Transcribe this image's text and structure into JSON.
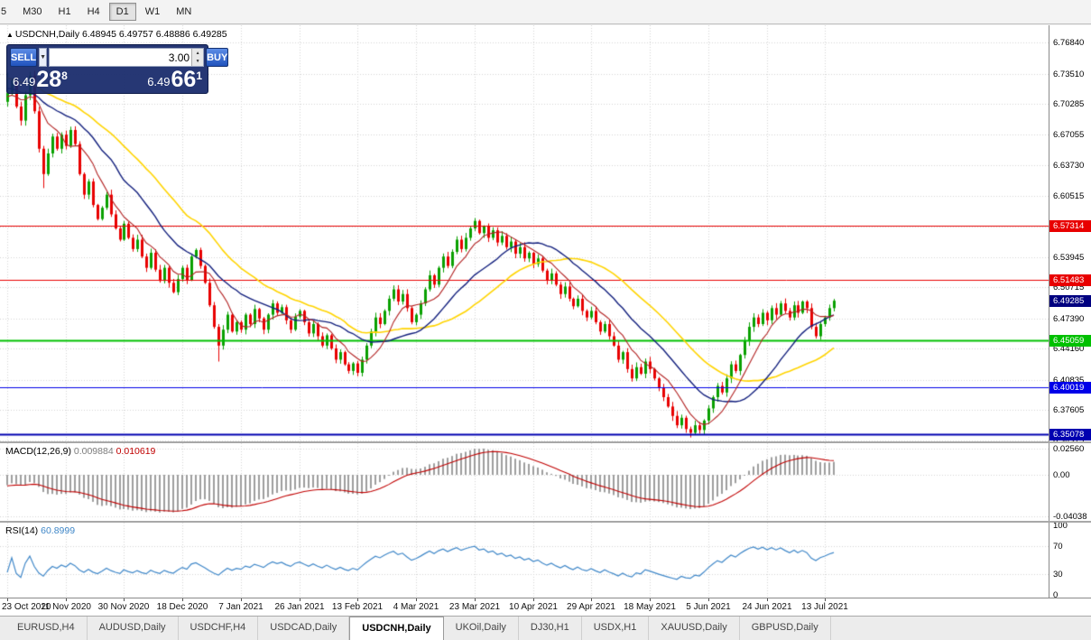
{
  "toolbar": {
    "timeframes": [
      {
        "label": "5",
        "active": false
      },
      {
        "label": "M30",
        "active": false
      },
      {
        "label": "H1",
        "active": false
      },
      {
        "label": "H4",
        "active": false
      },
      {
        "label": "D1",
        "active": true
      },
      {
        "label": "W1",
        "active": false
      },
      {
        "label": "MN",
        "active": false
      }
    ]
  },
  "chart": {
    "symbol_line": {
      "marker": "▲",
      "symbol": "USDCNH,Daily",
      "ohlc": "6.48945 6.49757 6.48886 6.49285"
    },
    "one_click": {
      "sell_label": "SELL",
      "buy_label": "BUY",
      "volume": "3.00",
      "sell": {
        "base": "6.49",
        "pips": "28",
        "pip": "8"
      },
      "buy": {
        "base": "6.49",
        "pips": "66",
        "pip": "1"
      }
    },
    "price_axis": {
      "labels": [
        "6.76840",
        "6.73510",
        "6.70285",
        "6.67055",
        "6.63730",
        "6.60515",
        "6.53945",
        "6.50715",
        "6.47390",
        "6.44160",
        "6.40835",
        "6.37605",
        "6.34375"
      ],
      "grid": [
        6.7684,
        6.7351,
        6.70285,
        6.67055,
        6.6373,
        6.60515,
        6.57185,
        6.53945,
        6.50715,
        6.4739,
        6.4416,
        6.40835,
        6.37605,
        6.34375
      ]
    },
    "levels": [
      {
        "price": 6.57314,
        "label": "6.57314",
        "color": "#e80000",
        "width": 1
      },
      {
        "price": 6.51483,
        "label": "6.51483",
        "color": "#e80000",
        "width": 1
      },
      {
        "price": 6.45059,
        "label": "6.45059",
        "color": "#00c000",
        "width": 2
      },
      {
        "price": 6.40019,
        "label": "6.40019",
        "color": "#0000e8",
        "width": 1
      },
      {
        "price": 6.35078,
        "label": "6.35078",
        "color": "#0000b0",
        "width": 2
      }
    ],
    "current_price_tag": {
      "price": 6.49285,
      "label": "6.49285",
      "color": "#000080"
    }
  },
  "macd": {
    "label": "MACD(12,26,9)",
    "value_main": "0.009884",
    "value_signal": "0.010619",
    "axis": [
      "0.02560",
      "0.00",
      "-0.04038"
    ]
  },
  "rsi": {
    "label": "RSI(14)",
    "value": "60.8999",
    "axis": [
      "100",
      "70",
      "30",
      "0"
    ],
    "levels": [
      70,
      30
    ]
  },
  "tabs": {
    "active_index": 4,
    "items": [
      {
        "label": "EURUSD,H4"
      },
      {
        "label": "AUDUSD,Daily"
      },
      {
        "label": "USDCHF,H4"
      },
      {
        "label": "USDCAD,Daily"
      },
      {
        "label": "USDCNH,Daily"
      },
      {
        "label": "UKOil,Daily"
      },
      {
        "label": "DJ30,H1"
      },
      {
        "label": "USDX,H1"
      },
      {
        "label": "XAUUSD,Daily"
      },
      {
        "label": "GBPUSD,Daily"
      }
    ]
  },
  "chart_data": {
    "type": "candlestick",
    "symbol": "USDCNH",
    "timeframe": "Daily",
    "x_labels": [
      "23 Oct 2020",
      "11 Nov 2020",
      "30 Nov 2020",
      "18 Dec 2020",
      "7 Jan 2021",
      "26 Jan 2021",
      "13 Feb 2021",
      "4 Mar 2021",
      "23 Mar 2021",
      "10 Apr 2021",
      "29 Apr 2021",
      "18 May 2021",
      "5 Jun 2021",
      "24 Jun 2021",
      "13 Jul 2021"
    ],
    "label_every": 13,
    "open_first": 6.705,
    "closes": [
      6.715,
      6.728,
      6.7,
      6.685,
      6.712,
      6.733,
      6.695,
      6.655,
      6.628,
      6.65,
      6.668,
      6.655,
      6.67,
      6.658,
      6.675,
      6.66,
      6.628,
      6.606,
      6.62,
      6.595,
      6.58,
      6.592,
      6.606,
      6.585,
      6.57,
      6.558,
      6.575,
      6.56,
      6.548,
      6.558,
      6.54,
      6.528,
      6.544,
      6.526,
      6.514,
      6.528,
      6.512,
      6.502,
      6.516,
      6.528,
      6.515,
      6.54,
      6.547,
      6.53,
      6.512,
      6.488,
      6.465,
      6.445,
      6.462,
      6.478,
      6.46,
      6.47,
      6.462,
      6.478,
      6.468,
      6.484,
      6.474,
      6.462,
      6.478,
      6.49,
      6.48,
      6.486,
      6.472,
      6.462,
      6.476,
      6.482,
      6.47,
      6.458,
      6.468,
      6.455,
      6.445,
      6.456,
      6.442,
      6.43,
      6.438,
      6.425,
      6.418,
      6.426,
      6.416,
      6.43,
      6.445,
      6.46,
      6.475,
      6.468,
      6.482,
      6.495,
      6.505,
      6.492,
      6.5,
      6.485,
      6.47,
      6.478,
      6.49,
      6.505,
      6.52,
      6.51,
      6.528,
      6.54,
      6.53,
      6.545,
      6.558,
      6.548,
      6.56,
      6.57,
      6.578,
      6.565,
      6.572,
      6.56,
      6.568,
      6.555,
      6.562,
      6.55,
      6.556,
      6.543,
      6.55,
      6.538,
      6.544,
      6.532,
      6.538,
      6.525,
      6.515,
      6.522,
      6.51,
      6.5,
      6.508,
      6.495,
      6.487,
      6.495,
      6.482,
      6.475,
      6.482,
      6.47,
      6.46,
      6.468,
      6.455,
      6.445,
      6.43,
      6.438,
      6.42,
      6.41,
      6.422,
      6.415,
      6.428,
      6.42,
      6.41,
      6.4,
      6.39,
      6.38,
      6.37,
      6.36,
      6.368,
      6.356,
      6.352,
      6.36,
      6.355,
      6.365,
      6.378,
      6.39,
      6.402,
      6.395,
      6.41,
      6.425,
      6.418,
      6.435,
      6.45,
      6.465,
      6.475,
      6.468,
      6.48,
      6.472,
      6.485,
      6.478,
      6.49,
      6.482,
      6.475,
      6.488,
      6.48,
      6.492,
      6.485,
      6.465,
      6.455,
      6.468,
      6.475,
      6.485,
      6.49285
    ],
    "wick_overrides": {
      "0": {
        "high": 6.736
      },
      "5": {
        "high": 6.737
      },
      "8": {
        "low": 6.613
      },
      "47": {
        "low": 6.428
      },
      "104": {
        "high": 6.581
      },
      "152": {
        "low": 6.347
      }
    },
    "ylim": [
      6.3428,
      6.7867
    ],
    "mas": [
      {
        "name": "ma-slow",
        "period": 34,
        "color": "#ffd400",
        "width": 1.6
      },
      {
        "name": "ma-mid",
        "period": 20,
        "color": "#121f7d",
        "width": 1.4
      },
      {
        "name": "ma-fast",
        "period": 8,
        "color": "#b22222",
        "width": 1.1
      }
    ],
    "prepad": {
      "from": 6.8,
      "count": 60
    },
    "macd_params": [
      12,
      26,
      9
    ],
    "macd_range": [
      -0.045,
      0.0309
    ],
    "rsi_period": 14,
    "rsi_range": [
      -4,
      104
    ],
    "colors": {
      "up": "#0aa000",
      "down": "#e80000",
      "grid": "#d4d4d4",
      "macd_bar": "#9e9e9e",
      "macd_signal": "#c00000",
      "rsi_line": "#3f87c8"
    }
  }
}
